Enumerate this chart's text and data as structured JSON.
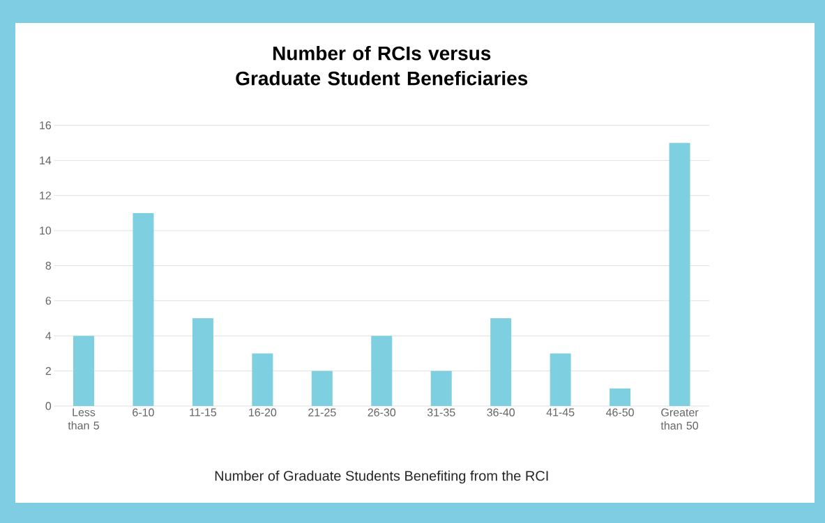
{
  "chart_data": {
    "type": "bar",
    "title": "Number of RCIs versus Graduate Student Beneficiaries",
    "xlabel": "Number of Graduate Students Benefiting from the RCI",
    "categories": [
      "Less than 5",
      "6-10",
      "11-15",
      "16-20",
      "21-25",
      "26-30",
      "31-35",
      "36-40",
      "41-45",
      "46-50",
      "Greater than 50"
    ],
    "values": [
      4,
      11,
      5,
      3,
      2,
      4,
      2,
      5,
      3,
      1,
      15
    ],
    "color": "#7ecfe0",
    "ylim": [
      0,
      16
    ],
    "yticks": [
      0,
      2,
      4,
      6,
      8,
      10,
      12,
      14,
      16
    ],
    "grid": "y"
  }
}
